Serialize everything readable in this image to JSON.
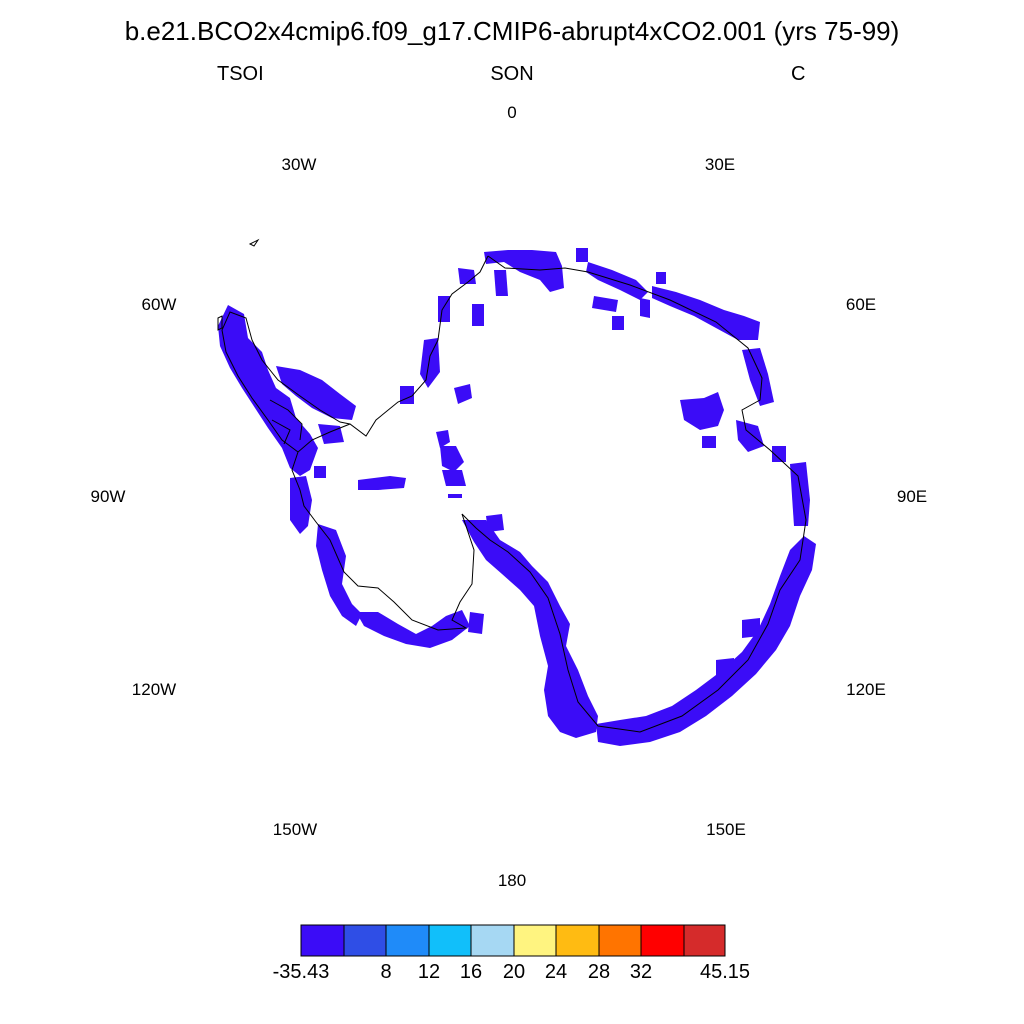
{
  "title": "b.e21.BCO2x4cmip6.f09_g17.CMIP6-abrupt4xCO2.001 (yrs 75-99)",
  "subtitle": {
    "left": "TSOI",
    "center": "SON",
    "right": "C"
  },
  "longitude_labels": [
    {
      "label": "0",
      "lon": 0
    },
    {
      "label": "30E",
      "lon": 30
    },
    {
      "label": "60E",
      "lon": 60
    },
    {
      "label": "90E",
      "lon": 90
    },
    {
      "label": "120E",
      "lon": 120
    },
    {
      "label": "150E",
      "lon": 150
    },
    {
      "label": "180",
      "lon": 180
    },
    {
      "label": "150W",
      "lon": -150
    },
    {
      "label": "120W",
      "lon": -120
    },
    {
      "label": "90W",
      "lon": -90
    },
    {
      "label": "60W",
      "lon": -60
    },
    {
      "label": "30W",
      "lon": -30
    }
  ],
  "colorbar": {
    "colors": [
      "#3b0cf7",
      "#2f4ee6",
      "#1f8bf9",
      "#11bffa",
      "#a6d8f3",
      "#fff480",
      "#ffbb12",
      "#ff7400",
      "#ff0000",
      "#d52b2b"
    ],
    "labels": [
      "-35.43",
      "8",
      "12",
      "16",
      "20",
      "24",
      "28",
      "32",
      "45.15"
    ]
  },
  "field_color": "#3b0cf7",
  "coast_color": "#000000",
  "projection": "south-polar-stereographic",
  "field_level": "-35.43 to 8"
}
